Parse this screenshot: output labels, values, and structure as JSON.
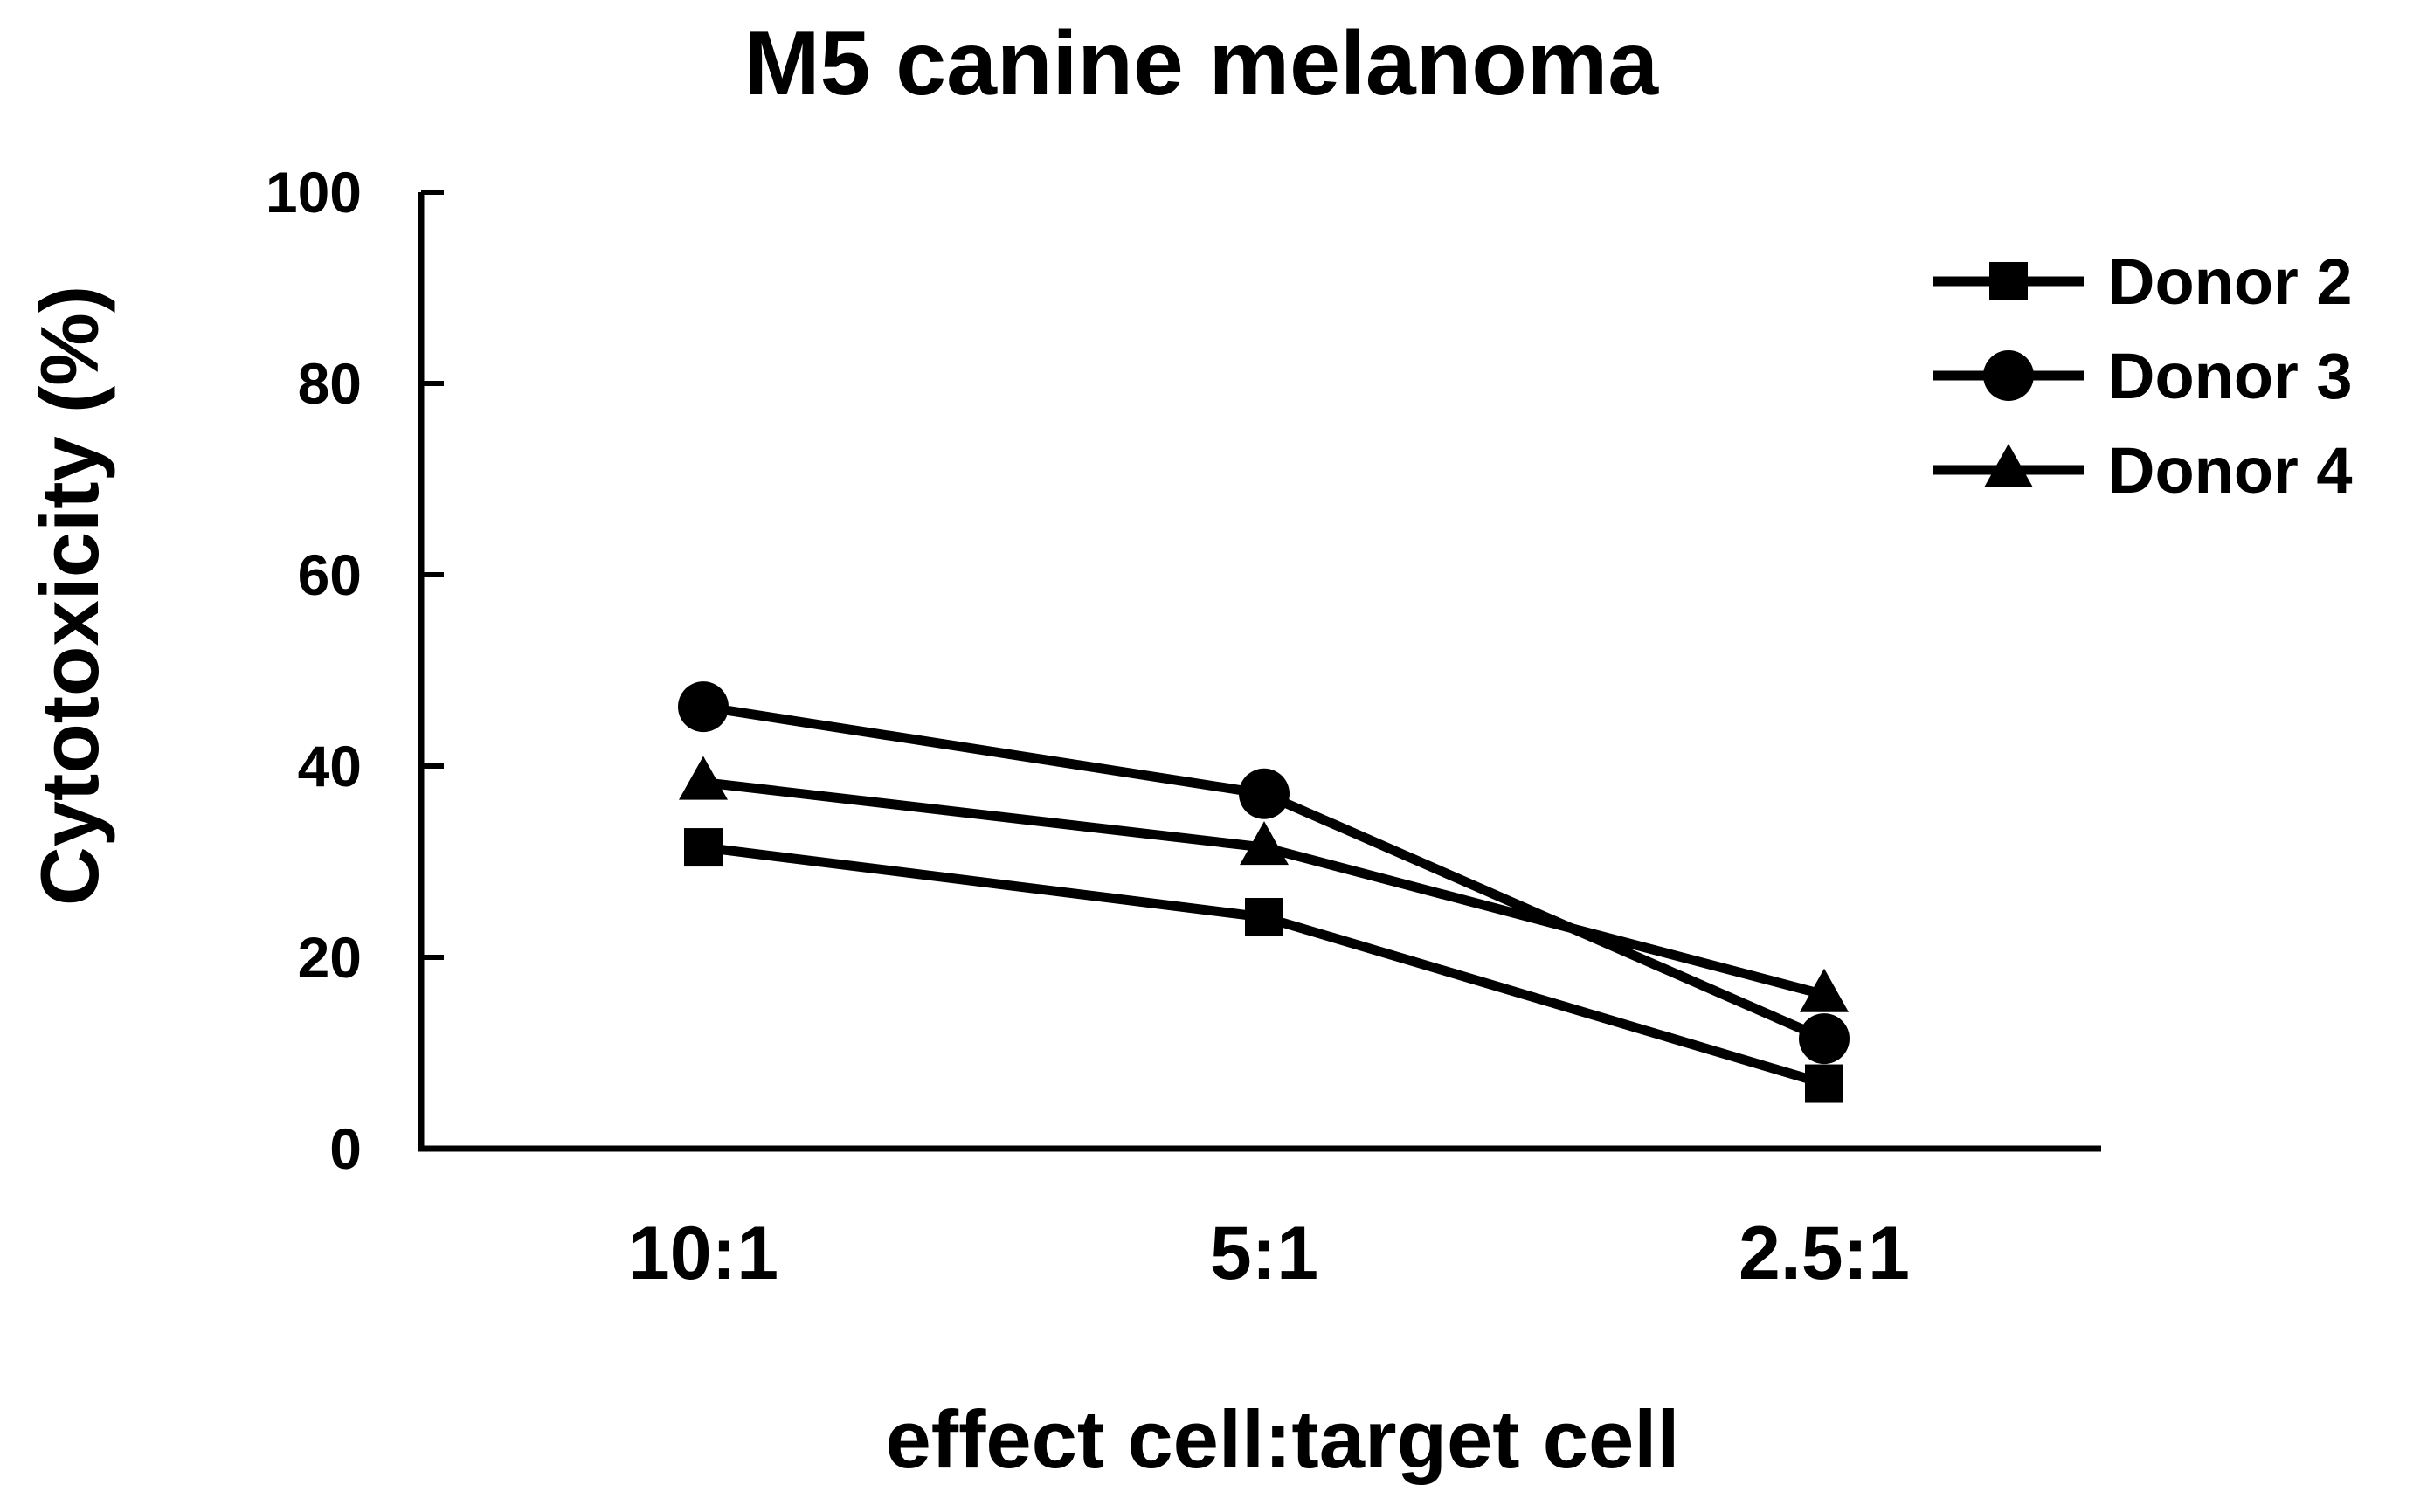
{
  "chart_data": {
    "type": "line",
    "title": "M5 canine melanoma",
    "xlabel": "effect cell:target cell",
    "ylabel": "Cytotoxicity (%)",
    "categories": [
      "10:1",
      "5:1",
      "2.5:1"
    ],
    "ylim": [
      0,
      100
    ],
    "yticks": [
      0,
      20,
      40,
      60,
      80,
      100
    ],
    "grid": false,
    "legend_position": "top-right",
    "series": [
      {
        "name": "Donor 2",
        "marker": "square",
        "values": [
          31.5,
          24.2,
          6.8
        ]
      },
      {
        "name": "Donor 3",
        "marker": "circle",
        "values": [
          46.2,
          37.1,
          11.5
        ]
      },
      {
        "name": "Donor 4",
        "marker": "triangle",
        "values": [
          38.3,
          31.5,
          16.1
        ]
      }
    ],
    "colors": {
      "line": "#000000",
      "background": "#ffffff"
    }
  }
}
